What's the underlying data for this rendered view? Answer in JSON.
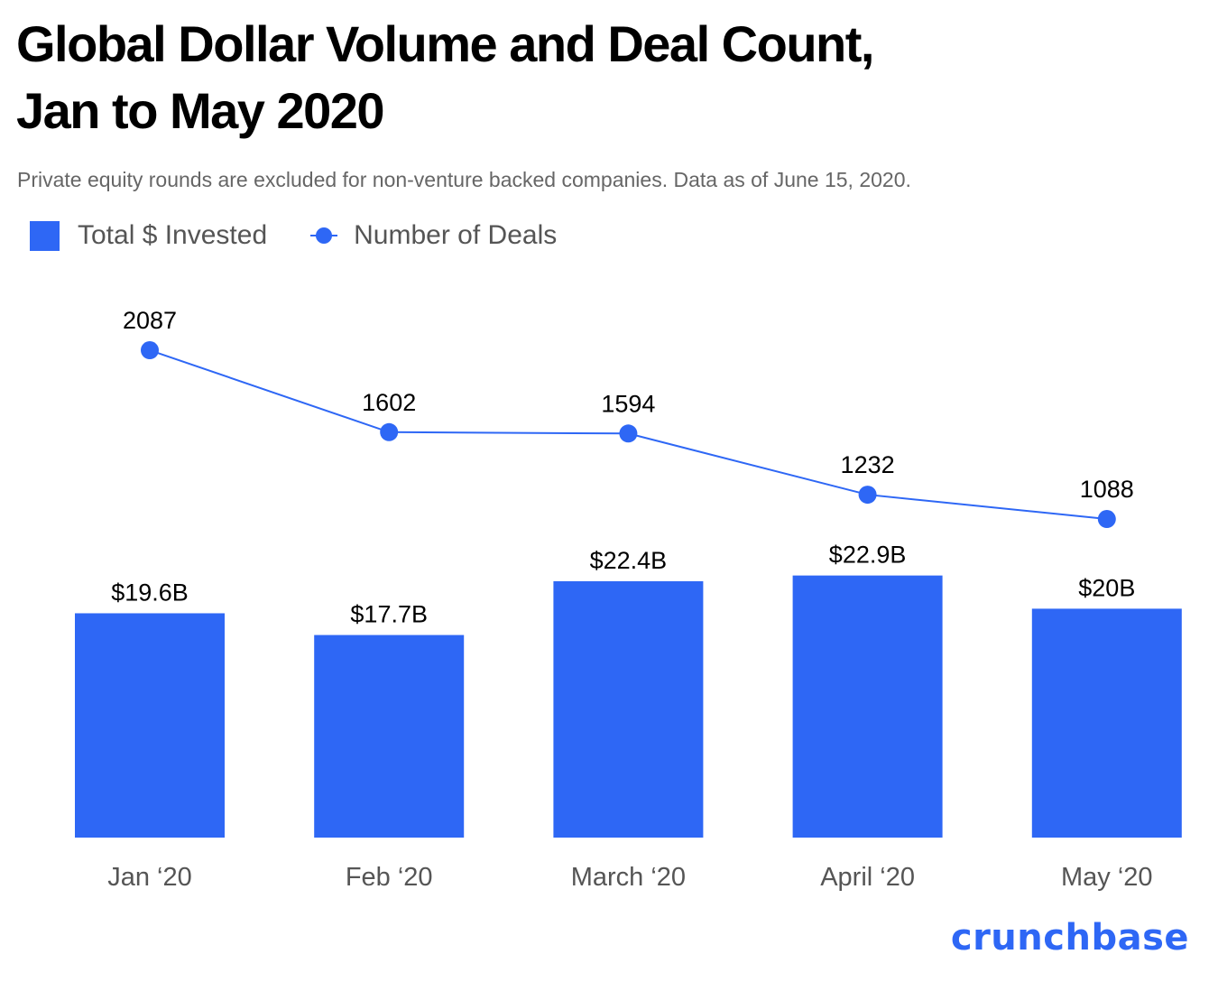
{
  "chart_data": {
    "type": "bar+line",
    "title": [
      "Global Dollar Volume and Deal Count,",
      "Jan to May 2020"
    ],
    "subtitle": "Private equity rounds are excluded for non-venture backed companies. Data as of June 15, 2020.",
    "categories": [
      "Jan ‘20",
      "Feb ‘20",
      "March ‘20",
      "April ‘20",
      "May ‘20"
    ],
    "series": [
      {
        "name": "Total $ Invested",
        "type": "bar",
        "values": [
          19.6,
          17.7,
          22.4,
          22.9,
          20
        ],
        "labels": [
          "$19.6B",
          "$17.7B",
          "$22.4B",
          "$22.9B",
          "$20B"
        ],
        "color": "#2e67f5"
      },
      {
        "name": "Number of Deals",
        "type": "line",
        "values": [
          2087,
          1602,
          1594,
          1232,
          1088
        ],
        "labels": [
          "2087",
          "1602",
          "1594",
          "1232",
          "1088"
        ],
        "color": "#2e67f5"
      }
    ],
    "grid": false,
    "legend": "top-left"
  },
  "logo": "crunchbase"
}
